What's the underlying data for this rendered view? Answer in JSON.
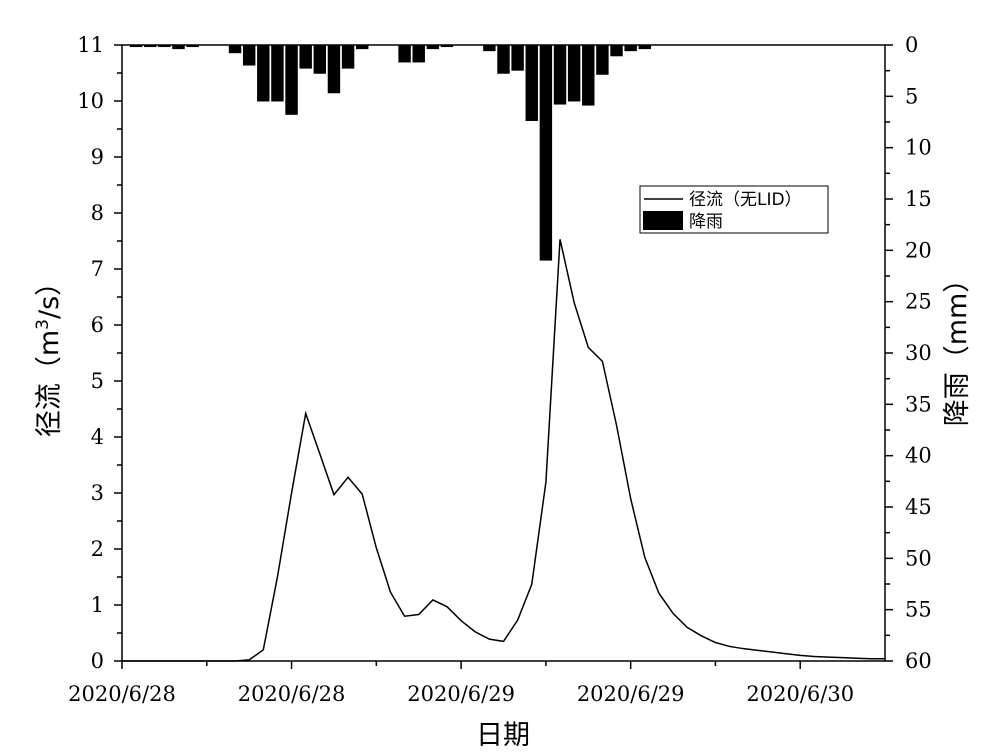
{
  "chart_data": {
    "type": "bar+line",
    "xlabel": "日期",
    "ylabel_left": "径流（m3/s）",
    "ylabel_left_parts": [
      "径流（m",
      "3",
      "/s）"
    ],
    "ylabel_right": "降雨（mm）",
    "x_tick_labels": [
      "2020/6/28",
      "2020/6/28",
      "2020/6/29",
      "2020/6/29",
      "2020/6/30"
    ],
    "x_range": [
      0,
      54
    ],
    "x_major_ticks": [
      0,
      12,
      24,
      36,
      48
    ],
    "x_minor_ticks": [
      6,
      18,
      30,
      42
    ],
    "ylim_left": [
      0,
      11
    ],
    "y_left_ticks": [
      0,
      1,
      2,
      3,
      4,
      5,
      6,
      7,
      8,
      9,
      10,
      11
    ],
    "ylim_right": [
      0,
      60
    ],
    "y_right_inverted": true,
    "y_right_ticks": [
      0,
      5,
      10,
      15,
      20,
      25,
      30,
      35,
      40,
      45,
      50,
      55,
      60
    ],
    "legend_position": "upper-right",
    "colors": {
      "line": "#000000",
      "bar": "#000000",
      "frame": "#000000",
      "background": "#ffffff"
    },
    "series": [
      {
        "name": "径流（无LID）",
        "type": "line",
        "axis": "left",
        "x": [
          0,
          1,
          2,
          3,
          4,
          5,
          6,
          7,
          8,
          9,
          10,
          11,
          12,
          13,
          14,
          15,
          16,
          17,
          18,
          19,
          20,
          21,
          22,
          23,
          24,
          25,
          26,
          27,
          28,
          29,
          30,
          31,
          32,
          33,
          34,
          35,
          36,
          37,
          38,
          39,
          40,
          41,
          42,
          43,
          44,
          45,
          46,
          47,
          48,
          49,
          50,
          51,
          52,
          53,
          54
        ],
        "values": [
          0,
          0,
          0,
          0,
          0,
          0,
          0,
          0,
          0,
          0.02,
          0.2,
          1.5,
          3.0,
          4.42,
          3.7,
          2.97,
          3.28,
          2.98,
          2.02,
          1.23,
          0.8,
          0.83,
          1.09,
          0.97,
          0.72,
          0.52,
          0.39,
          0.35,
          0.73,
          1.37,
          3.19,
          7.53,
          6.4,
          5.6,
          5.35,
          4.21,
          2.9,
          1.85,
          1.21,
          0.85,
          0.6,
          0.45,
          0.33,
          0.26,
          0.22,
          0.19,
          0.16,
          0.13,
          0.1,
          0.08,
          0.07,
          0.06,
          0.05,
          0.04,
          0.04
        ]
      },
      {
        "name": "降雨",
        "type": "bar",
        "axis": "right",
        "x": [
          1,
          2,
          3,
          4,
          5,
          8,
          9,
          10,
          11,
          12,
          13,
          14,
          15,
          16,
          17,
          20,
          21,
          22,
          23,
          26,
          27,
          28,
          29,
          30,
          31,
          32,
          33,
          34,
          35,
          36,
          37
        ],
        "values": [
          0.2,
          0.2,
          0.2,
          0.4,
          0.2,
          0.8,
          2,
          5.5,
          5.5,
          6.8,
          2.3,
          2.8,
          4.7,
          2.3,
          0.4,
          1.7,
          1.7,
          0.4,
          0.2,
          0.6,
          2.8,
          2.5,
          7.4,
          21,
          5.8,
          5.5,
          5.9,
          2.9,
          1.1,
          0.6,
          0.4
        ]
      }
    ]
  }
}
